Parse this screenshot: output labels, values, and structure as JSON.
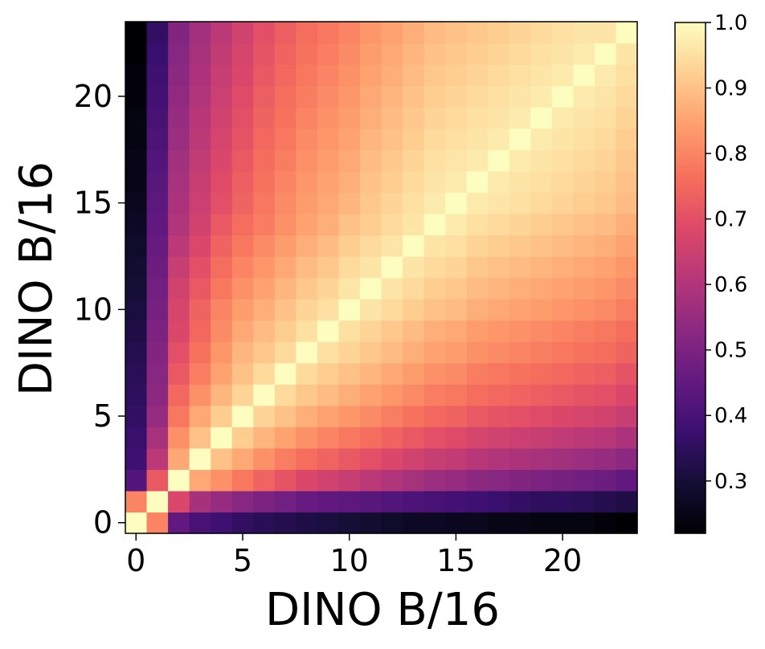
{
  "chart_data": {
    "type": "heatmap",
    "title": "",
    "xlabel": "DINO B/16",
    "ylabel": "DINO B/16",
    "n": 24,
    "xlim": [
      -0.5,
      23.5
    ],
    "ylim": [
      -0.5,
      23.5
    ],
    "x_ticks": [
      0,
      5,
      10,
      15,
      20
    ],
    "x_tick_labels": [
      "0",
      "5",
      "10",
      "15",
      "20"
    ],
    "y_ticks": [
      0,
      5,
      10,
      15,
      20
    ],
    "y_tick_labels": [
      "0",
      "5",
      "10",
      "15",
      "20"
    ],
    "colormap": "magma",
    "colorbar": {
      "min": 0.22,
      "max": 1.0,
      "ticks": [
        0.3,
        0.4,
        0.5,
        0.6,
        0.7,
        0.8,
        0.9,
        1.0
      ],
      "tick_labels": [
        "0.3",
        "0.4",
        "0.5",
        "0.6",
        "0.7",
        "0.8",
        "0.9",
        "1.0"
      ]
    },
    "values": [
      [
        1.0,
        0.8,
        0.45,
        0.4,
        0.38,
        0.36,
        0.34,
        0.33,
        0.32,
        0.31,
        0.3,
        0.29,
        0.28,
        0.27,
        0.27,
        0.26,
        0.26,
        0.25,
        0.25,
        0.24,
        0.24,
        0.24,
        0.23,
        0.22
      ],
      [
        0.8,
        1.0,
        0.68,
        0.58,
        0.55,
        0.52,
        0.5,
        0.48,
        0.46,
        0.45,
        0.44,
        0.43,
        0.42,
        0.41,
        0.4,
        0.39,
        0.38,
        0.37,
        0.36,
        0.35,
        0.35,
        0.34,
        0.33,
        0.32
      ],
      [
        0.42,
        0.72,
        1.0,
        0.86,
        0.82,
        0.78,
        0.74,
        0.71,
        0.68,
        0.66,
        0.64,
        0.62,
        0.6,
        0.58,
        0.56,
        0.55,
        0.53,
        0.52,
        0.51,
        0.5,
        0.49,
        0.48,
        0.47,
        0.45
      ],
      [
        0.38,
        0.62,
        0.86,
        1.0,
        0.9,
        0.86,
        0.82,
        0.79,
        0.76,
        0.74,
        0.72,
        0.7,
        0.68,
        0.66,
        0.64,
        0.63,
        0.61,
        0.6,
        0.59,
        0.58,
        0.57,
        0.56,
        0.55,
        0.53
      ],
      [
        0.37,
        0.58,
        0.82,
        0.9,
        1.0,
        0.92,
        0.88,
        0.85,
        0.82,
        0.8,
        0.78,
        0.76,
        0.74,
        0.72,
        0.7,
        0.69,
        0.67,
        0.66,
        0.65,
        0.64,
        0.63,
        0.62,
        0.61,
        0.59
      ],
      [
        0.36,
        0.55,
        0.78,
        0.86,
        0.92,
        1.0,
        0.93,
        0.9,
        0.87,
        0.85,
        0.83,
        0.81,
        0.79,
        0.77,
        0.75,
        0.74,
        0.72,
        0.71,
        0.7,
        0.69,
        0.68,
        0.67,
        0.66,
        0.64
      ],
      [
        0.35,
        0.53,
        0.75,
        0.82,
        0.88,
        0.93,
        1.0,
        0.94,
        0.91,
        0.89,
        0.87,
        0.85,
        0.83,
        0.81,
        0.79,
        0.78,
        0.76,
        0.75,
        0.74,
        0.73,
        0.72,
        0.71,
        0.7,
        0.68
      ],
      [
        0.34,
        0.52,
        0.72,
        0.79,
        0.85,
        0.9,
        0.94,
        1.0,
        0.94,
        0.92,
        0.9,
        0.88,
        0.86,
        0.84,
        0.82,
        0.81,
        0.79,
        0.78,
        0.77,
        0.76,
        0.75,
        0.74,
        0.73,
        0.71
      ],
      [
        0.33,
        0.51,
        0.7,
        0.77,
        0.83,
        0.88,
        0.91,
        0.94,
        1.0,
        0.95,
        0.93,
        0.91,
        0.89,
        0.87,
        0.85,
        0.84,
        0.82,
        0.81,
        0.8,
        0.79,
        0.78,
        0.77,
        0.76,
        0.74
      ],
      [
        0.32,
        0.5,
        0.68,
        0.75,
        0.81,
        0.86,
        0.89,
        0.92,
        0.95,
        1.0,
        0.95,
        0.93,
        0.91,
        0.89,
        0.87,
        0.86,
        0.84,
        0.83,
        0.82,
        0.81,
        0.8,
        0.79,
        0.78,
        0.76
      ],
      [
        0.31,
        0.49,
        0.67,
        0.74,
        0.8,
        0.84,
        0.87,
        0.9,
        0.93,
        0.95,
        1.0,
        0.96,
        0.94,
        0.92,
        0.9,
        0.89,
        0.87,
        0.86,
        0.85,
        0.84,
        0.83,
        0.82,
        0.81,
        0.79
      ],
      [
        0.3,
        0.48,
        0.66,
        0.72,
        0.78,
        0.82,
        0.85,
        0.88,
        0.91,
        0.93,
        0.96,
        1.0,
        0.96,
        0.94,
        0.92,
        0.91,
        0.89,
        0.88,
        0.87,
        0.86,
        0.85,
        0.84,
        0.83,
        0.81
      ],
      [
        0.29,
        0.47,
        0.64,
        0.7,
        0.76,
        0.8,
        0.83,
        0.86,
        0.89,
        0.91,
        0.94,
        0.96,
        1.0,
        0.96,
        0.94,
        0.93,
        0.91,
        0.9,
        0.89,
        0.88,
        0.87,
        0.86,
        0.85,
        0.83
      ],
      [
        0.28,
        0.46,
        0.62,
        0.68,
        0.74,
        0.78,
        0.81,
        0.84,
        0.87,
        0.89,
        0.92,
        0.94,
        0.96,
        1.0,
        0.96,
        0.95,
        0.93,
        0.92,
        0.91,
        0.9,
        0.89,
        0.88,
        0.87,
        0.85
      ],
      [
        0.27,
        0.45,
        0.6,
        0.66,
        0.72,
        0.76,
        0.79,
        0.82,
        0.85,
        0.87,
        0.9,
        0.92,
        0.94,
        0.96,
        1.0,
        0.97,
        0.95,
        0.94,
        0.93,
        0.92,
        0.91,
        0.9,
        0.89,
        0.87
      ],
      [
        0.26,
        0.44,
        0.59,
        0.65,
        0.7,
        0.74,
        0.78,
        0.81,
        0.84,
        0.86,
        0.88,
        0.91,
        0.93,
        0.95,
        0.97,
        1.0,
        0.97,
        0.96,
        0.95,
        0.94,
        0.93,
        0.92,
        0.91,
        0.89
      ],
      [
        0.25,
        0.43,
        0.58,
        0.64,
        0.69,
        0.73,
        0.77,
        0.8,
        0.83,
        0.85,
        0.87,
        0.9,
        0.92,
        0.94,
        0.96,
        0.97,
        1.0,
        0.97,
        0.96,
        0.95,
        0.94,
        0.93,
        0.92,
        0.9
      ],
      [
        0.25,
        0.42,
        0.57,
        0.63,
        0.68,
        0.72,
        0.76,
        0.79,
        0.82,
        0.84,
        0.86,
        0.89,
        0.91,
        0.93,
        0.95,
        0.96,
        0.97,
        1.0,
        0.97,
        0.96,
        0.95,
        0.94,
        0.93,
        0.91
      ],
      [
        0.24,
        0.41,
        0.56,
        0.62,
        0.67,
        0.71,
        0.75,
        0.78,
        0.81,
        0.83,
        0.85,
        0.88,
        0.9,
        0.92,
        0.94,
        0.95,
        0.96,
        0.97,
        1.0,
        0.97,
        0.96,
        0.95,
        0.94,
        0.92
      ],
      [
        0.24,
        0.4,
        0.55,
        0.61,
        0.66,
        0.7,
        0.74,
        0.77,
        0.8,
        0.82,
        0.84,
        0.87,
        0.89,
        0.91,
        0.93,
        0.94,
        0.95,
        0.96,
        0.97,
        1.0,
        0.97,
        0.96,
        0.95,
        0.93
      ],
      [
        0.23,
        0.39,
        0.54,
        0.6,
        0.65,
        0.69,
        0.73,
        0.76,
        0.79,
        0.81,
        0.83,
        0.86,
        0.88,
        0.9,
        0.92,
        0.93,
        0.94,
        0.95,
        0.96,
        0.97,
        1.0,
        0.97,
        0.96,
        0.94
      ],
      [
        0.23,
        0.38,
        0.53,
        0.59,
        0.64,
        0.68,
        0.72,
        0.75,
        0.78,
        0.8,
        0.82,
        0.85,
        0.87,
        0.89,
        0.91,
        0.92,
        0.93,
        0.94,
        0.95,
        0.96,
        0.97,
        1.0,
        0.97,
        0.95
      ],
      [
        0.22,
        0.37,
        0.52,
        0.58,
        0.63,
        0.67,
        0.71,
        0.74,
        0.77,
        0.79,
        0.81,
        0.84,
        0.86,
        0.88,
        0.9,
        0.91,
        0.92,
        0.93,
        0.94,
        0.95,
        0.96,
        0.97,
        1.0,
        0.96
      ],
      [
        0.22,
        0.36,
        0.51,
        0.57,
        0.62,
        0.66,
        0.7,
        0.73,
        0.76,
        0.78,
        0.8,
        0.83,
        0.85,
        0.87,
        0.89,
        0.9,
        0.91,
        0.92,
        0.93,
        0.94,
        0.95,
        0.96,
        0.96,
        1.0
      ]
    ]
  }
}
